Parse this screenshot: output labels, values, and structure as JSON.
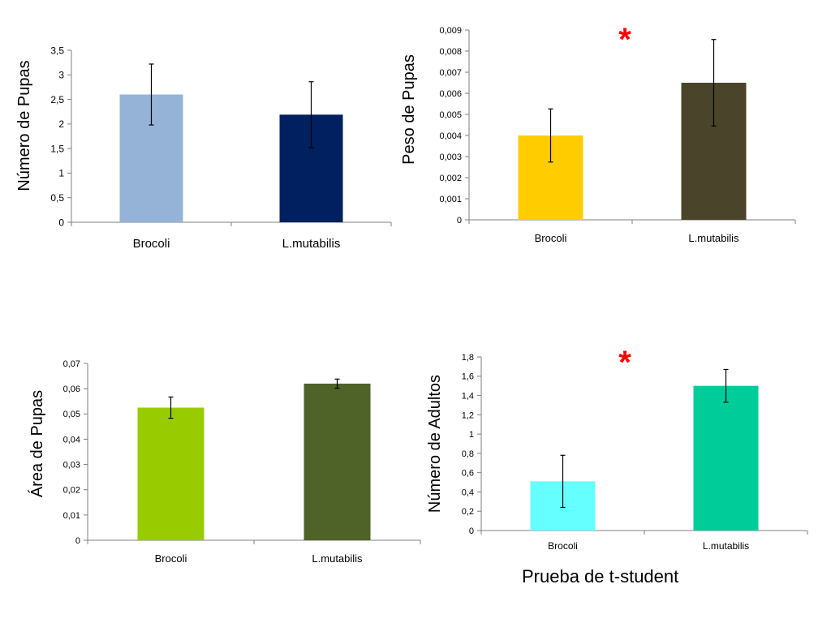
{
  "chart_data": [
    {
      "type": "bar",
      "ylabel": "Número de Pupas",
      "categories": [
        "Brocoli",
        "L.mutabilis"
      ],
      "values": [
        2.6,
        2.19
      ],
      "errors": [
        0.62,
        0.67
      ],
      "colors": [
        "#95b3d7",
        "#002060"
      ],
      "ylim": [
        0,
        3.5
      ],
      "yticks": [
        "0",
        "0,5",
        "1",
        "1,5",
        "2",
        "2,5",
        "3",
        "3,5"
      ],
      "grid": false,
      "significance": ""
    },
    {
      "type": "bar",
      "ylabel": "Peso  de Pupas",
      "categories": [
        "Brocoli",
        "L.mutabilis"
      ],
      "values": [
        0.004,
        0.0065
      ],
      "errors": [
        0.00126,
        0.00205
      ],
      "colors": [
        "#ffcc00",
        "#4a452a"
      ],
      "ylim": [
        0,
        0.009
      ],
      "yticks": [
        "0",
        "0,001",
        "0,002",
        "0,003",
        "0,004",
        "0,005",
        "0,006",
        "0,007",
        "0,008",
        "0,009"
      ],
      "grid": false,
      "significance": "*"
    },
    {
      "type": "bar",
      "ylabel": "Área  de Pupas",
      "categories": [
        "Brocoli",
        "L.mutabilis"
      ],
      "values": [
        0.0525,
        0.062
      ],
      "errors": [
        0.0042,
        0.0018
      ],
      "colors": [
        "#99cc00",
        "#4f6228"
      ],
      "ylim": [
        0,
        0.07
      ],
      "yticks": [
        "0",
        "0,01",
        "0,02",
        "0,03",
        "0,04",
        "0,05",
        "0,06",
        "0,07"
      ],
      "grid": false,
      "significance": ""
    },
    {
      "type": "bar",
      "ylabel": "Número de Adultos",
      "categories": [
        "Brocoli",
        "L.mutabilis"
      ],
      "values": [
        0.51,
        1.5
      ],
      "errors": [
        0.27,
        0.17
      ],
      "colors": [
        "#66ffff",
        "#00cc99"
      ],
      "ylim": [
        0,
        1.8
      ],
      "yticks": [
        "0",
        "0,2",
        "0,4",
        "0,6",
        "0,8",
        "1",
        "1,2",
        "1,4",
        "1,6",
        "1,8"
      ],
      "grid": false,
      "significance": "*"
    }
  ],
  "footer": {
    "text": "Prueba de t-student"
  }
}
